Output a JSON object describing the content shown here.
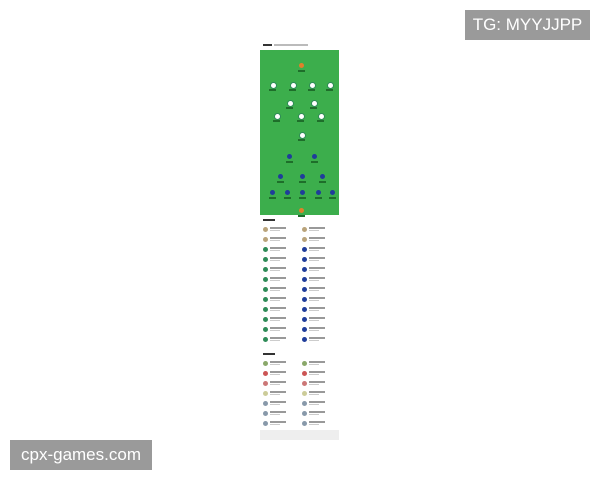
{
  "watermarks": {
    "top": "TG: MYYJJPP",
    "bottom": "cpx-games.com"
  },
  "colors": {
    "pitch": "#3cae4c",
    "home": "#2e8b57",
    "away": "#1f3d9a",
    "goalkeeper": "#e0802a"
  }
}
